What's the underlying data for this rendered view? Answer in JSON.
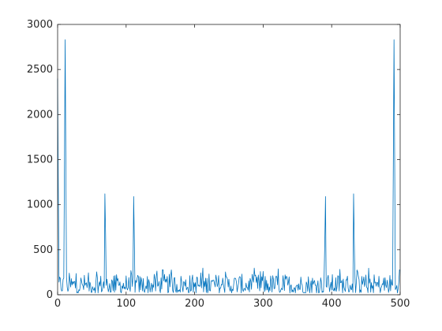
{
  "chart_data": {
    "type": "line",
    "title": "",
    "xlabel": "",
    "ylabel": "",
    "xlim": [
      0,
      500
    ],
    "ylim": [
      0,
      3000
    ],
    "grid": false,
    "legend": "none",
    "color": "#0072BD",
    "x_ticks": [
      0,
      100,
      200,
      300,
      400,
      500
    ],
    "x_tick_labels": [
      "0",
      "100",
      "200",
      "300",
      "400",
      "500"
    ],
    "y_ticks": [
      0,
      500,
      1000,
      1500,
      2000,
      2500,
      3000
    ],
    "y_tick_labels": [
      "0",
      "500",
      "1000",
      "1500",
      "2000",
      "2500",
      "3000"
    ],
    "series": [
      {
        "noise_x_range": [
          0,
          499
        ],
        "noise_floor_range": [
          20,
          300
        ],
        "peaks": [
          {
            "x": 0,
            "y": 2400
          },
          {
            "x": 1,
            "y": 1210
          },
          {
            "x": 10,
            "y": 1440
          },
          {
            "x": 11,
            "y": 2830
          },
          {
            "x": 12,
            "y": 1470
          },
          {
            "x": 69,
            "y": 1120
          },
          {
            "x": 70,
            "y": 680
          },
          {
            "x": 111,
            "y": 1090
          },
          {
            "x": 112,
            "y": 590
          },
          {
            "x": 390,
            "y": 590
          },
          {
            "x": 391,
            "y": 1090
          },
          {
            "x": 432,
            "y": 1120
          },
          {
            "x": 433,
            "y": 590
          },
          {
            "x": 490,
            "y": 1470
          },
          {
            "x": 491,
            "y": 2830
          },
          {
            "x": 492,
            "y": 1440
          },
          {
            "x": 498,
            "y": 140
          },
          {
            "x": 499,
            "y": 280
          }
        ]
      }
    ]
  }
}
